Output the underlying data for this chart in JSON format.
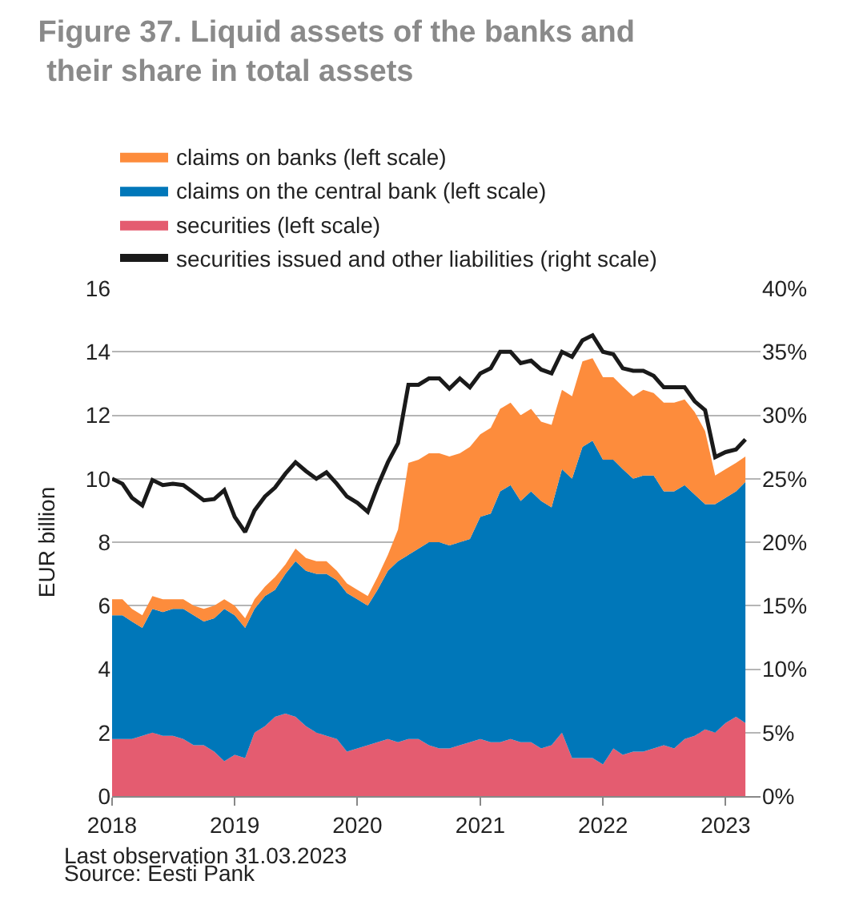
{
  "chart_data": {
    "type": "area",
    "stacked": true,
    "title": "Figure 37. Liquid assets of the banks and their share in total assets",
    "ylabel": "EUR billion",
    "x": [
      "2018-01",
      "2018-02",
      "2018-03",
      "2018-04",
      "2018-05",
      "2018-06",
      "2018-07",
      "2018-08",
      "2018-09",
      "2018-10",
      "2018-11",
      "2018-12",
      "2019-01",
      "2019-02",
      "2019-03",
      "2019-04",
      "2019-05",
      "2019-06",
      "2019-07",
      "2019-08",
      "2019-09",
      "2019-10",
      "2019-11",
      "2019-12",
      "2020-01",
      "2020-02",
      "2020-03",
      "2020-04",
      "2020-05",
      "2020-06",
      "2020-07",
      "2020-08",
      "2020-09",
      "2020-10",
      "2020-11",
      "2020-12",
      "2021-01",
      "2021-02",
      "2021-03",
      "2021-04",
      "2021-05",
      "2021-06",
      "2021-07",
      "2021-08",
      "2021-09",
      "2021-10",
      "2021-11",
      "2021-12",
      "2022-01",
      "2022-02",
      "2022-03",
      "2022-04",
      "2022-05",
      "2022-06",
      "2022-07",
      "2022-08",
      "2022-09",
      "2022-10",
      "2022-11",
      "2022-12",
      "2023-01",
      "2023-02",
      "2023-03"
    ],
    "series": [
      {
        "name": "securities (left scale)",
        "color": "#e45c70",
        "values": [
          1.8,
          1.8,
          1.8,
          1.9,
          2.0,
          1.9,
          1.9,
          1.8,
          1.6,
          1.6,
          1.4,
          1.1,
          1.3,
          1.2,
          2.0,
          2.2,
          2.5,
          2.6,
          2.5,
          2.2,
          2.0,
          1.9,
          1.8,
          1.4,
          1.5,
          1.6,
          1.7,
          1.8,
          1.7,
          1.8,
          1.8,
          1.6,
          1.5,
          1.5,
          1.6,
          1.7,
          1.8,
          1.7,
          1.7,
          1.8,
          1.7,
          1.7,
          1.5,
          1.6,
          2.0,
          1.2,
          1.2,
          1.2,
          1.0,
          1.5,
          1.3,
          1.4,
          1.4,
          1.5,
          1.6,
          1.5,
          1.8,
          1.9,
          2.1,
          2.0,
          2.3,
          2.5,
          2.3
        ]
      },
      {
        "name": "claims on the central bank (left scale)",
        "color": "#0077b9",
        "values": [
          3.9,
          3.9,
          3.7,
          3.4,
          3.9,
          3.9,
          4.0,
          4.1,
          4.1,
          3.9,
          4.2,
          4.8,
          4.4,
          4.1,
          3.9,
          4.1,
          4.0,
          4.4,
          4.9,
          4.9,
          5.0,
          5.1,
          5.0,
          5.0,
          4.7,
          4.4,
          4.8,
          5.3,
          5.7,
          5.8,
          6.0,
          6.4,
          6.5,
          6.4,
          6.4,
          6.4,
          7.0,
          7.2,
          7.9,
          8.0,
          7.6,
          7.9,
          7.8,
          7.5,
          8.3,
          8.8,
          9.8,
          10.0,
          9.6,
          9.1,
          9.0,
          8.6,
          8.7,
          8.6,
          8.0,
          8.1,
          8.0,
          7.6,
          7.1,
          7.2,
          7.1,
          7.1,
          7.6
        ]
      },
      {
        "name": "claims on banks (left scale)",
        "color": "#fd8c3c",
        "values": [
          0.5,
          0.5,
          0.4,
          0.4,
          0.4,
          0.4,
          0.3,
          0.3,
          0.3,
          0.4,
          0.4,
          0.3,
          0.3,
          0.3,
          0.3,
          0.3,
          0.4,
          0.3,
          0.4,
          0.4,
          0.4,
          0.4,
          0.3,
          0.3,
          0.3,
          0.3,
          0.4,
          0.5,
          1.0,
          2.9,
          2.8,
          2.8,
          2.8,
          2.8,
          2.8,
          2.9,
          2.6,
          2.7,
          2.6,
          2.6,
          2.7,
          2.6,
          2.5,
          2.6,
          2.5,
          2.6,
          2.7,
          2.6,
          2.6,
          2.6,
          2.6,
          2.6,
          2.7,
          2.6,
          2.8,
          2.8,
          2.7,
          2.6,
          2.3,
          0.9,
          0.9,
          0.9,
          0.8
        ]
      },
      {
        "name": "securities issued and other liabilities (right scale)",
        "type": "line",
        "axis": "y2",
        "color": "#1a1a1a",
        "values": [
          25.0,
          24.6,
          23.5,
          22.9,
          24.9,
          24.5,
          24.6,
          24.5,
          23.9,
          23.3,
          23.4,
          24.1,
          22.0,
          20.8,
          22.5,
          23.6,
          24.3,
          25.4,
          26.3,
          25.6,
          25.0,
          25.5,
          24.6,
          23.6,
          23.1,
          22.4,
          24.4,
          26.3,
          27.8,
          32.4,
          32.4,
          32.9,
          32.9,
          32.1,
          32.9,
          32.2,
          33.3,
          33.7,
          35.0,
          35.0,
          34.1,
          34.3,
          33.6,
          33.3,
          35.0,
          34.6,
          35.9,
          36.3,
          35.0,
          34.8,
          33.7,
          33.5,
          33.5,
          33.1,
          32.2,
          32.2,
          32.2,
          31.1,
          30.4,
          26.7,
          27.1,
          27.3,
          28.1
        ]
      }
    ],
    "xlim": [
      "2018-01-01",
      "2023-04-15"
    ],
    "xticks": [
      {
        "value": "2018-01-01",
        "label": "2018"
      },
      {
        "value": "2019-01-01",
        "label": "2019"
      },
      {
        "value": "2020-01-01",
        "label": "2020"
      },
      {
        "value": "2021-01-01",
        "label": "2021"
      },
      {
        "value": "2022-01-01",
        "label": "2022"
      },
      {
        "value": "2023-01-01",
        "label": "2023"
      }
    ],
    "ylim": [
      0,
      16
    ],
    "yticks": [
      0,
      2,
      4,
      6,
      8,
      10,
      12,
      14,
      16
    ],
    "y2lim": [
      0,
      40
    ],
    "y2ticks": [
      {
        "value": 0,
        "label": "0%"
      },
      {
        "value": 5,
        "label": "5%"
      },
      {
        "value": 10,
        "label": "10%"
      },
      {
        "value": 15,
        "label": "15%"
      },
      {
        "value": 20,
        "label": "20%"
      },
      {
        "value": 25,
        "label": "25%"
      },
      {
        "value": 30,
        "label": "30%"
      },
      {
        "value": 35,
        "label": "35%"
      },
      {
        "value": 40,
        "label": "40%"
      }
    ],
    "grid": "y",
    "legend": "top",
    "annotations": [
      "Last observation 31.03.2023",
      "Source: Eesti Pank"
    ]
  }
}
